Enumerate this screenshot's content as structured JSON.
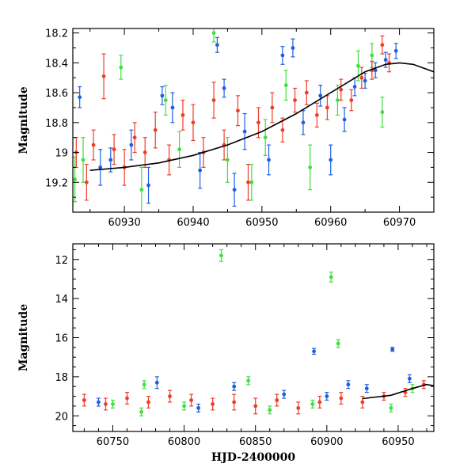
{
  "chart_data": [
    {
      "type": "scatter",
      "panel": "top",
      "title": "",
      "xlabel": "",
      "ylabel": "Magnitude",
      "xlim": [
        60922.5,
        60975
      ],
      "ylim": [
        19.4,
        18.17
      ],
      "y_inverted": true,
      "xticks": [
        60930,
        60940,
        60950,
        60960,
        60970
      ],
      "xtick_labels": [
        "60930",
        "60940",
        "60950",
        "60960",
        "60970"
      ],
      "yticks": [
        18.2,
        18.4,
        18.6,
        18.8,
        19,
        19.2
      ],
      "ytick_labels": [
        "18.2",
        "18.4",
        "18.6",
        "18.8",
        "19",
        "19.2"
      ],
      "series": [
        {
          "name": "blue",
          "color": "#1f5fe0",
          "points": [
            {
              "x": 60923.5,
              "y": 18.63,
              "err": 0.07
            },
            {
              "x": 60926.5,
              "y": 19.1,
              "err": 0.12
            },
            {
              "x": 60928.0,
              "y": 19.05,
              "err": 0.08
            },
            {
              "x": 60931.0,
              "y": 18.95,
              "err": 0.1
            },
            {
              "x": 60933.5,
              "y": 19.22,
              "err": 0.12
            },
            {
              "x": 60935.5,
              "y": 18.62,
              "err": 0.06
            },
            {
              "x": 60937.0,
              "y": 18.7,
              "err": 0.1
            },
            {
              "x": 60941.0,
              "y": 19.12,
              "err": 0.12
            },
            {
              "x": 60943.5,
              "y": 18.28,
              "err": 0.05
            },
            {
              "x": 60944.5,
              "y": 18.57,
              "err": 0.06
            },
            {
              "x": 60946.0,
              "y": 19.25,
              "err": 0.11
            },
            {
              "x": 60947.5,
              "y": 18.86,
              "err": 0.12
            },
            {
              "x": 60951.0,
              "y": 19.05,
              "err": 0.1
            },
            {
              "x": 60953.0,
              "y": 18.35,
              "err": 0.06
            },
            {
              "x": 60954.5,
              "y": 18.3,
              "err": 0.06
            },
            {
              "x": 60956.0,
              "y": 18.8,
              "err": 0.08
            },
            {
              "x": 60958.5,
              "y": 18.62,
              "err": 0.07
            },
            {
              "x": 60960.0,
              "y": 19.05,
              "err": 0.1
            },
            {
              "x": 60962.0,
              "y": 18.78,
              "err": 0.08
            },
            {
              "x": 60963.5,
              "y": 18.56,
              "err": 0.06
            },
            {
              "x": 60965.0,
              "y": 18.52,
              "err": 0.05
            },
            {
              "x": 60966.5,
              "y": 18.45,
              "err": 0.05
            },
            {
              "x": 60968.0,
              "y": 18.38,
              "err": 0.05
            },
            {
              "x": 60969.5,
              "y": 18.32,
              "err": 0.05
            }
          ]
        },
        {
          "name": "green",
          "color": "#3ee03e",
          "points": [
            {
              "x": 60922.8,
              "y": 19.18,
              "err": 0.15
            },
            {
              "x": 60924.0,
              "y": 19.05,
              "err": 0.15
            },
            {
              "x": 60929.5,
              "y": 18.43,
              "err": 0.08
            },
            {
              "x": 60932.5,
              "y": 19.25,
              "err": 0.15
            },
            {
              "x": 60936.0,
              "y": 18.65,
              "err": 0.1
            },
            {
              "x": 60938.0,
              "y": 18.98,
              "err": 0.12
            },
            {
              "x": 60943.0,
              "y": 18.2,
              "err": 0.06
            },
            {
              "x": 60945.0,
              "y": 19.05,
              "err": 0.15
            },
            {
              "x": 60948.5,
              "y": 19.2,
              "err": 0.12
            },
            {
              "x": 60950.5,
              "y": 18.9,
              "err": 0.12
            },
            {
              "x": 60953.5,
              "y": 18.55,
              "err": 0.1
            },
            {
              "x": 60957.0,
              "y": 19.1,
              "err": 0.15
            },
            {
              "x": 60961.0,
              "y": 18.65,
              "err": 0.1
            },
            {
              "x": 60964.0,
              "y": 18.42,
              "err": 0.1
            },
            {
              "x": 60966.0,
              "y": 18.35,
              "err": 0.08
            },
            {
              "x": 60967.5,
              "y": 18.73,
              "err": 0.1
            }
          ]
        },
        {
          "name": "red",
          "color": "#ee3d2a",
          "points": [
            {
              "x": 60923.0,
              "y": 19.0,
              "err": 0.1
            },
            {
              "x": 60924.5,
              "y": 19.2,
              "err": 0.12
            },
            {
              "x": 60925.5,
              "y": 18.95,
              "err": 0.1
            },
            {
              "x": 60927.0,
              "y": 18.49,
              "err": 0.15
            },
            {
              "x": 60928.5,
              "y": 18.98,
              "err": 0.1
            },
            {
              "x": 60930.0,
              "y": 19.1,
              "err": 0.12
            },
            {
              "x": 60931.5,
              "y": 18.9,
              "err": 0.1
            },
            {
              "x": 60933.0,
              "y": 19.0,
              "err": 0.1
            },
            {
              "x": 60934.5,
              "y": 18.85,
              "err": 0.12
            },
            {
              "x": 60936.5,
              "y": 19.05,
              "err": 0.1
            },
            {
              "x": 60938.5,
              "y": 18.75,
              "err": 0.1
            },
            {
              "x": 60940.0,
              "y": 18.8,
              "err": 0.12
            },
            {
              "x": 60941.5,
              "y": 19.0,
              "err": 0.1
            },
            {
              "x": 60943.0,
              "y": 18.65,
              "err": 0.12
            },
            {
              "x": 60944.5,
              "y": 18.95,
              "err": 0.1
            },
            {
              "x": 60946.5,
              "y": 18.72,
              "err": 0.1
            },
            {
              "x": 60948.0,
              "y": 19.2,
              "err": 0.12
            },
            {
              "x": 60949.5,
              "y": 18.8,
              "err": 0.1
            },
            {
              "x": 60951.5,
              "y": 18.7,
              "err": 0.1
            },
            {
              "x": 60953.0,
              "y": 18.85,
              "err": 0.08
            },
            {
              "x": 60954.8,
              "y": 18.65,
              "err": 0.08
            },
            {
              "x": 60956.5,
              "y": 18.6,
              "err": 0.08
            },
            {
              "x": 60958.0,
              "y": 18.75,
              "err": 0.08
            },
            {
              "x": 60959.5,
              "y": 18.7,
              "err": 0.08
            },
            {
              "x": 60961.5,
              "y": 18.58,
              "err": 0.07
            },
            {
              "x": 60963.0,
              "y": 18.65,
              "err": 0.07
            },
            {
              "x": 60964.5,
              "y": 18.5,
              "err": 0.07
            },
            {
              "x": 60966.0,
              "y": 18.45,
              "err": 0.06
            },
            {
              "x": 60967.5,
              "y": 18.28,
              "err": 0.06
            },
            {
              "x": 60968.5,
              "y": 18.4,
              "err": 0.06
            }
          ]
        }
      ],
      "fit_curve": {
        "color": "#000000",
        "points": [
          {
            "x": 60925,
            "y": 19.12
          },
          {
            "x": 60930,
            "y": 19.1
          },
          {
            "x": 60935,
            "y": 19.07
          },
          {
            "x": 60940,
            "y": 19.02
          },
          {
            "x": 60945,
            "y": 18.95
          },
          {
            "x": 60950,
            "y": 18.86
          },
          {
            "x": 60955,
            "y": 18.74
          },
          {
            "x": 60960,
            "y": 18.6
          },
          {
            "x": 60965,
            "y": 18.46
          },
          {
            "x": 60968,
            "y": 18.41
          },
          {
            "x": 60970,
            "y": 18.4
          },
          {
            "x": 60972,
            "y": 18.41
          },
          {
            "x": 60975,
            "y": 18.46
          }
        ]
      }
    },
    {
      "type": "scatter",
      "panel": "bottom",
      "title": "",
      "xlabel": "HJD-2400000",
      "ylabel": "Magnitude",
      "xlim": [
        60722,
        60975
      ],
      "ylim": [
        20.8,
        11.2
      ],
      "y_inverted": true,
      "xticks": [
        60750,
        60800,
        60850,
        60900,
        60950
      ],
      "xtick_labels": [
        "60750",
        "60800",
        "60850",
        "60900",
        "60950"
      ],
      "yticks": [
        12,
        14,
        16,
        18,
        20
      ],
      "ytick_labels": [
        "12",
        "14",
        "16",
        "18",
        "20"
      ],
      "series": [
        {
          "name": "green",
          "color": "#3ee03e",
          "points": [
            {
              "x": 60826,
              "y": 11.8,
              "err": 0.3
            },
            {
              "x": 60903,
              "y": 12.9,
              "err": 0.25
            },
            {
              "x": 60908,
              "y": 16.3,
              "err": 0.2
            },
            {
              "x": 60845,
              "y": 18.2,
              "err": 0.2
            },
            {
              "x": 60772,
              "y": 18.4,
              "err": 0.2
            },
            {
              "x": 60960,
              "y": 18.6,
              "err": 0.2
            },
            {
              "x": 60750,
              "y": 19.4,
              "err": 0.2
            },
            {
              "x": 60770,
              "y": 19.8,
              "err": 0.2
            },
            {
              "x": 60800,
              "y": 19.5,
              "err": 0.2
            },
            {
              "x": 60860,
              "y": 19.7,
              "err": 0.2
            },
            {
              "x": 60890,
              "y": 19.4,
              "err": 0.2
            },
            {
              "x": 60945,
              "y": 19.6,
              "err": 0.2
            }
          ]
        },
        {
          "name": "blue",
          "color": "#1f5fe0",
          "points": [
            {
              "x": 60891,
              "y": 16.7,
              "err": 0.15
            },
            {
              "x": 60946,
              "y": 16.6,
              "err": 0.1
            },
            {
              "x": 60781,
              "y": 18.3,
              "err": 0.3
            },
            {
              "x": 60835,
              "y": 18.5,
              "err": 0.2
            },
            {
              "x": 60870,
              "y": 18.9,
              "err": 0.2
            },
            {
              "x": 60915,
              "y": 18.4,
              "err": 0.2
            },
            {
              "x": 60928,
              "y": 18.6,
              "err": 0.2
            },
            {
              "x": 60958,
              "y": 18.1,
              "err": 0.2
            },
            {
              "x": 60740,
              "y": 19.3,
              "err": 0.2
            },
            {
              "x": 60810,
              "y": 19.6,
              "err": 0.2
            },
            {
              "x": 60900,
              "y": 19.0,
              "err": 0.2
            }
          ]
        },
        {
          "name": "red",
          "color": "#ee3d2a",
          "points": [
            {
              "x": 60730,
              "y": 19.2,
              "err": 0.3
            },
            {
              "x": 60745,
              "y": 19.4,
              "err": 0.3
            },
            {
              "x": 60760,
              "y": 19.1,
              "err": 0.3
            },
            {
              "x": 60775,
              "y": 19.3,
              "err": 0.3
            },
            {
              "x": 60790,
              "y": 19.0,
              "err": 0.3
            },
            {
              "x": 60805,
              "y": 19.2,
              "err": 0.3
            },
            {
              "x": 60820,
              "y": 19.4,
              "err": 0.3
            },
            {
              "x": 60835,
              "y": 19.3,
              "err": 0.4
            },
            {
              "x": 60850,
              "y": 19.5,
              "err": 0.4
            },
            {
              "x": 60865,
              "y": 19.2,
              "err": 0.3
            },
            {
              "x": 60880,
              "y": 19.6,
              "err": 0.3
            },
            {
              "x": 60895,
              "y": 19.3,
              "err": 0.3
            },
            {
              "x": 60910,
              "y": 19.1,
              "err": 0.3
            },
            {
              "x": 60925,
              "y": 19.3,
              "err": 0.3
            },
            {
              "x": 60940,
              "y": 19.0,
              "err": 0.2
            },
            {
              "x": 60955,
              "y": 18.8,
              "err": 0.2
            },
            {
              "x": 60968,
              "y": 18.4,
              "err": 0.2
            }
          ]
        }
      ],
      "fit_curve": {
        "color": "#000000",
        "points": [
          {
            "x": 60925,
            "y": 19.12
          },
          {
            "x": 60945,
            "y": 18.95
          },
          {
            "x": 60960,
            "y": 18.6
          },
          {
            "x": 60970,
            "y": 18.4
          },
          {
            "x": 60975,
            "y": 18.46
          }
        ]
      }
    }
  ]
}
